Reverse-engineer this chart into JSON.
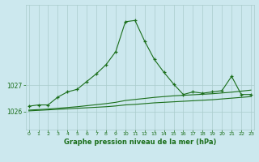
{
  "hours": [
    0,
    1,
    2,
    3,
    4,
    5,
    6,
    7,
    8,
    9,
    10,
    11,
    12,
    13,
    14,
    15,
    16,
    17,
    18,
    19,
    20,
    21,
    22,
    23
  ],
  "pressure_main": [
    1026.2,
    1026.25,
    1026.25,
    1026.55,
    1026.75,
    1026.85,
    1027.15,
    1027.45,
    1027.8,
    1028.3,
    1029.45,
    1029.5,
    1028.7,
    1028.0,
    1027.5,
    1027.05,
    1026.65,
    1026.75,
    1026.7,
    1026.75,
    1026.8,
    1027.35,
    1026.65,
    1026.65
  ],
  "pressure_line2": [
    1026.05,
    1026.07,
    1026.09,
    1026.12,
    1026.15,
    1026.18,
    1026.22,
    1026.26,
    1026.3,
    1026.35,
    1026.42,
    1026.46,
    1026.5,
    1026.54,
    1026.57,
    1026.6,
    1026.62,
    1026.64,
    1026.66,
    1026.68,
    1026.71,
    1026.74,
    1026.78,
    1026.82
  ],
  "pressure_line3": [
    1026.02,
    1026.04,
    1026.06,
    1026.08,
    1026.1,
    1026.12,
    1026.14,
    1026.16,
    1026.18,
    1026.21,
    1026.25,
    1026.27,
    1026.3,
    1026.33,
    1026.35,
    1026.37,
    1026.39,
    1026.41,
    1026.43,
    1026.45,
    1026.48,
    1026.51,
    1026.54,
    1026.57
  ],
  "yticks": [
    1026,
    1027
  ],
  "ylim": [
    1025.3,
    1030.1
  ],
  "xlim": [
    -0.3,
    23.3
  ],
  "bg_color": "#cce8ee",
  "line_color": "#1a6e1a",
  "grid_color": "#aacccc",
  "xlabel": "Graphe pression niveau de la mer (hPa)",
  "tick_color": "#1a6e1a"
}
